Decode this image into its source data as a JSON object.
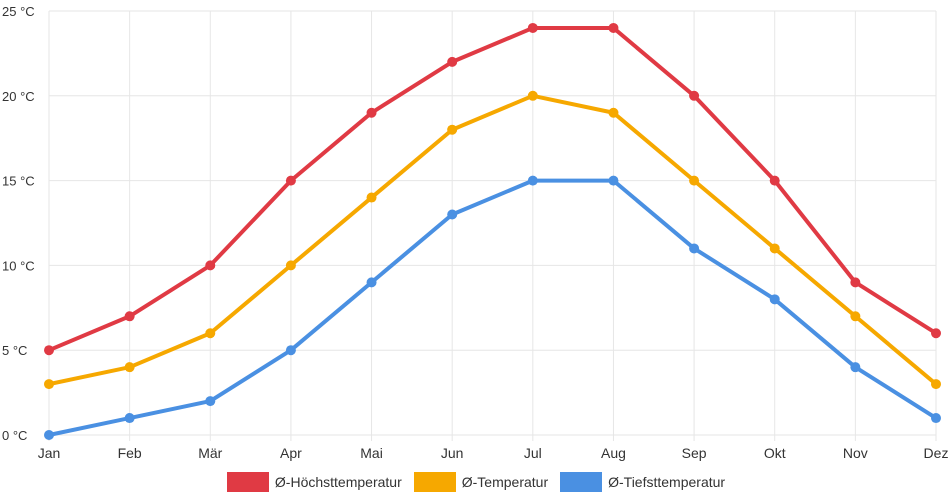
{
  "chart_data": {
    "type": "line",
    "categories": [
      "Jan",
      "Feb",
      "Mär",
      "Apr",
      "Mai",
      "Jun",
      "Jul",
      "Aug",
      "Sep",
      "Okt",
      "Nov",
      "Dez"
    ],
    "ylim": [
      0,
      25
    ],
    "yticks": [
      0,
      5,
      10,
      15,
      20,
      25
    ],
    "y_unit_suffix": " °C",
    "grid": true,
    "legend_position": "bottom",
    "series": [
      {
        "name": "Ø-Höchsttemperatur",
        "color": "#e03a44",
        "values": [
          5,
          7,
          10,
          15,
          19,
          22,
          24,
          24,
          20,
          15,
          9,
          6
        ]
      },
      {
        "name": "Ø-Temperatur",
        "color": "#f6a800",
        "values": [
          3,
          4,
          6,
          10,
          14,
          18,
          20,
          19,
          15,
          11,
          7,
          3
        ]
      },
      {
        "name": "Ø-Tiefsttemperatur",
        "color": "#4a90e2",
        "values": [
          0,
          1,
          2,
          5,
          9,
          13,
          15,
          15,
          11,
          8,
          4,
          1
        ]
      }
    ]
  }
}
